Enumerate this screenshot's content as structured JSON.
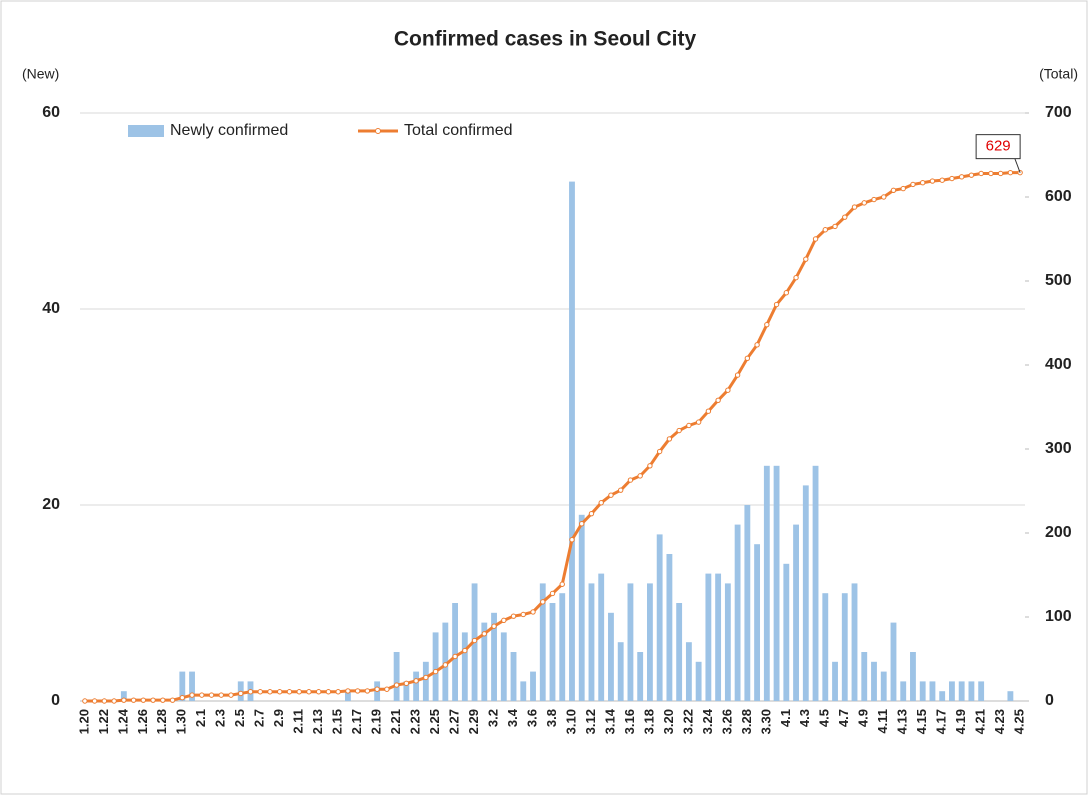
{
  "chart_data": {
    "type": "bar_line",
    "title": "Confirmed cases in Seoul City",
    "y_label": "(New)",
    "y2_label": "(Total)",
    "categories": [
      "1.20",
      null,
      "1.22",
      null,
      "1.24",
      null,
      "1.26",
      null,
      "1.28",
      null,
      "1.30",
      null,
      "2.1",
      null,
      "2.3",
      null,
      "2.5",
      null,
      "2.7",
      null,
      "2.9",
      null,
      "2.11",
      null,
      "2.13",
      null,
      "2.15",
      null,
      "2.17",
      null,
      "2.19",
      null,
      "2.21",
      null,
      "2.23",
      null,
      "2.25",
      null,
      "2.27",
      null,
      "2.29",
      null,
      "3.2",
      null,
      "3.4",
      null,
      "3.6",
      null,
      "3.8",
      null,
      "3.10",
      null,
      "3.12",
      null,
      "3.14",
      null,
      "3.16",
      null,
      "3.18",
      null,
      "3.20",
      null,
      "3.22",
      null,
      "3.24",
      null,
      "3.26",
      null,
      "3.28",
      null,
      "3.30",
      null,
      "4.1",
      null,
      "4.3",
      null,
      "4.5",
      null,
      "4.7",
      null,
      "4.9",
      null,
      "4.11",
      null,
      "4.13",
      null,
      "4.15",
      null,
      "4.17",
      null,
      "4.19",
      null,
      "4.21",
      null,
      "4.23",
      null,
      "4.25"
    ],
    "series": [
      {
        "name": "Newly confirmed",
        "color": "#9dc3e6",
        "axis": "y",
        "values": [
          0,
          0,
          0,
          0,
          1,
          0,
          0,
          0,
          0,
          0,
          3,
          3,
          0,
          0,
          0,
          0,
          2,
          2,
          0,
          0,
          0,
          0,
          0,
          0,
          0,
          0,
          0,
          1,
          0,
          0,
          2,
          0,
          5,
          2,
          3,
          4,
          7,
          8,
          10,
          7,
          12,
          8,
          9,
          7,
          5,
          2,
          3,
          12,
          10,
          11,
          53,
          19,
          12,
          13,
          9,
          6,
          12,
          5,
          12,
          17,
          15,
          10,
          6,
          4,
          13,
          13,
          12,
          18,
          20,
          16,
          24,
          24,
          14,
          18,
          22,
          24,
          11,
          4,
          11,
          12,
          5,
          4,
          3,
          8,
          2,
          5,
          2,
          2,
          1,
          2,
          2,
          2,
          2,
          0,
          0,
          1,
          0
        ]
      },
      {
        "name": "Total confirmed",
        "color": "#ed7d31",
        "axis": "y2",
        "values": [
          0,
          0,
          0,
          0,
          1,
          1,
          1,
          1,
          1,
          1,
          4,
          7,
          7,
          7,
          7,
          7,
          9,
          11,
          11,
          11,
          11,
          11,
          11,
          11,
          11,
          11,
          11,
          12,
          12,
          12,
          14,
          14,
          19,
          21,
          24,
          28,
          35,
          43,
          53,
          60,
          72,
          80,
          89,
          96,
          101,
          103,
          106,
          118,
          128,
          139,
          192,
          211,
          223,
          236,
          245,
          251,
          263,
          268,
          280,
          297,
          312,
          322,
          328,
          332,
          345,
          358,
          370,
          388,
          408,
          424,
          448,
          472,
          486,
          504,
          526,
          550,
          561,
          565,
          576,
          588,
          593,
          597,
          600,
          608,
          610,
          615,
          617,
          619,
          620,
          622,
          624,
          626,
          628,
          628,
          628,
          629,
          629
        ]
      }
    ],
    "ylim": [
      0,
      60
    ],
    "yticks": [
      0,
      20,
      40,
      60
    ],
    "y2lim": [
      0,
      700
    ],
    "y2ticks": [
      0,
      100,
      200,
      300,
      400,
      500,
      600,
      700
    ],
    "grid": true,
    "legend": "top-left"
  }
}
